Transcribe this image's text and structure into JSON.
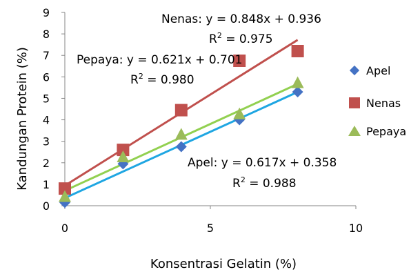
{
  "chart_data": {
    "type": "scatter",
    "title": "",
    "xlabel": "Konsentrasi Gelatin (%)",
    "ylabel": "Kandungan Protein (%)",
    "xlim": [
      0,
      10
    ],
    "ylim": [
      0,
      9
    ],
    "x_ticks": [
      "0",
      "5",
      "10"
    ],
    "y_ticks": [
      "0",
      "1",
      "2",
      "3",
      "4",
      "5",
      "6",
      "7",
      "8",
      "9"
    ],
    "grid": false,
    "legend_position": "right",
    "series": [
      {
        "name": "Apel",
        "marker": "diamond",
        "color": "#4472C4",
        "trend_color": "#1FA6E2",
        "x": [
          0,
          2,
          4,
          6,
          8
        ],
        "y": [
          0.15,
          1.95,
          2.75,
          4.0,
          5.3
        ],
        "trendline": {
          "slope": 0.617,
          "intercept": 0.358
        },
        "equation": "Apel: y = 0.617x + 0.358",
        "r2_label": "R",
        "r2_exp": "2",
        "r2_value": " = 0.988"
      },
      {
        "name": "Nenas",
        "marker": "square",
        "color": "#C0504D",
        "trend_color": "#C0504D",
        "x": [
          0,
          2,
          4,
          6,
          8
        ],
        "y": [
          0.8,
          2.6,
          4.45,
          6.75,
          7.2
        ],
        "trendline": {
          "slope": 0.848,
          "intercept": 0.936
        },
        "equation": "Nenas: y = 0.848x + 0.936",
        "r2_label": "R",
        "r2_exp": "2",
        "r2_value": " = 0.975"
      },
      {
        "name": "Pepaya",
        "marker": "triangle",
        "color": "#9BBB59",
        "trend_color": "#92D050",
        "x": [
          0,
          2,
          4,
          6,
          8
        ],
        "y": [
          0.4,
          2.25,
          3.3,
          4.25,
          5.7
        ],
        "trendline": {
          "slope": 0.621,
          "intercept": 0.701
        },
        "equation": "Pepaya: y = 0.621x + 0.701",
        "r2_label": "R",
        "r2_exp": "2",
        "r2_value": " = 0.980"
      }
    ]
  }
}
